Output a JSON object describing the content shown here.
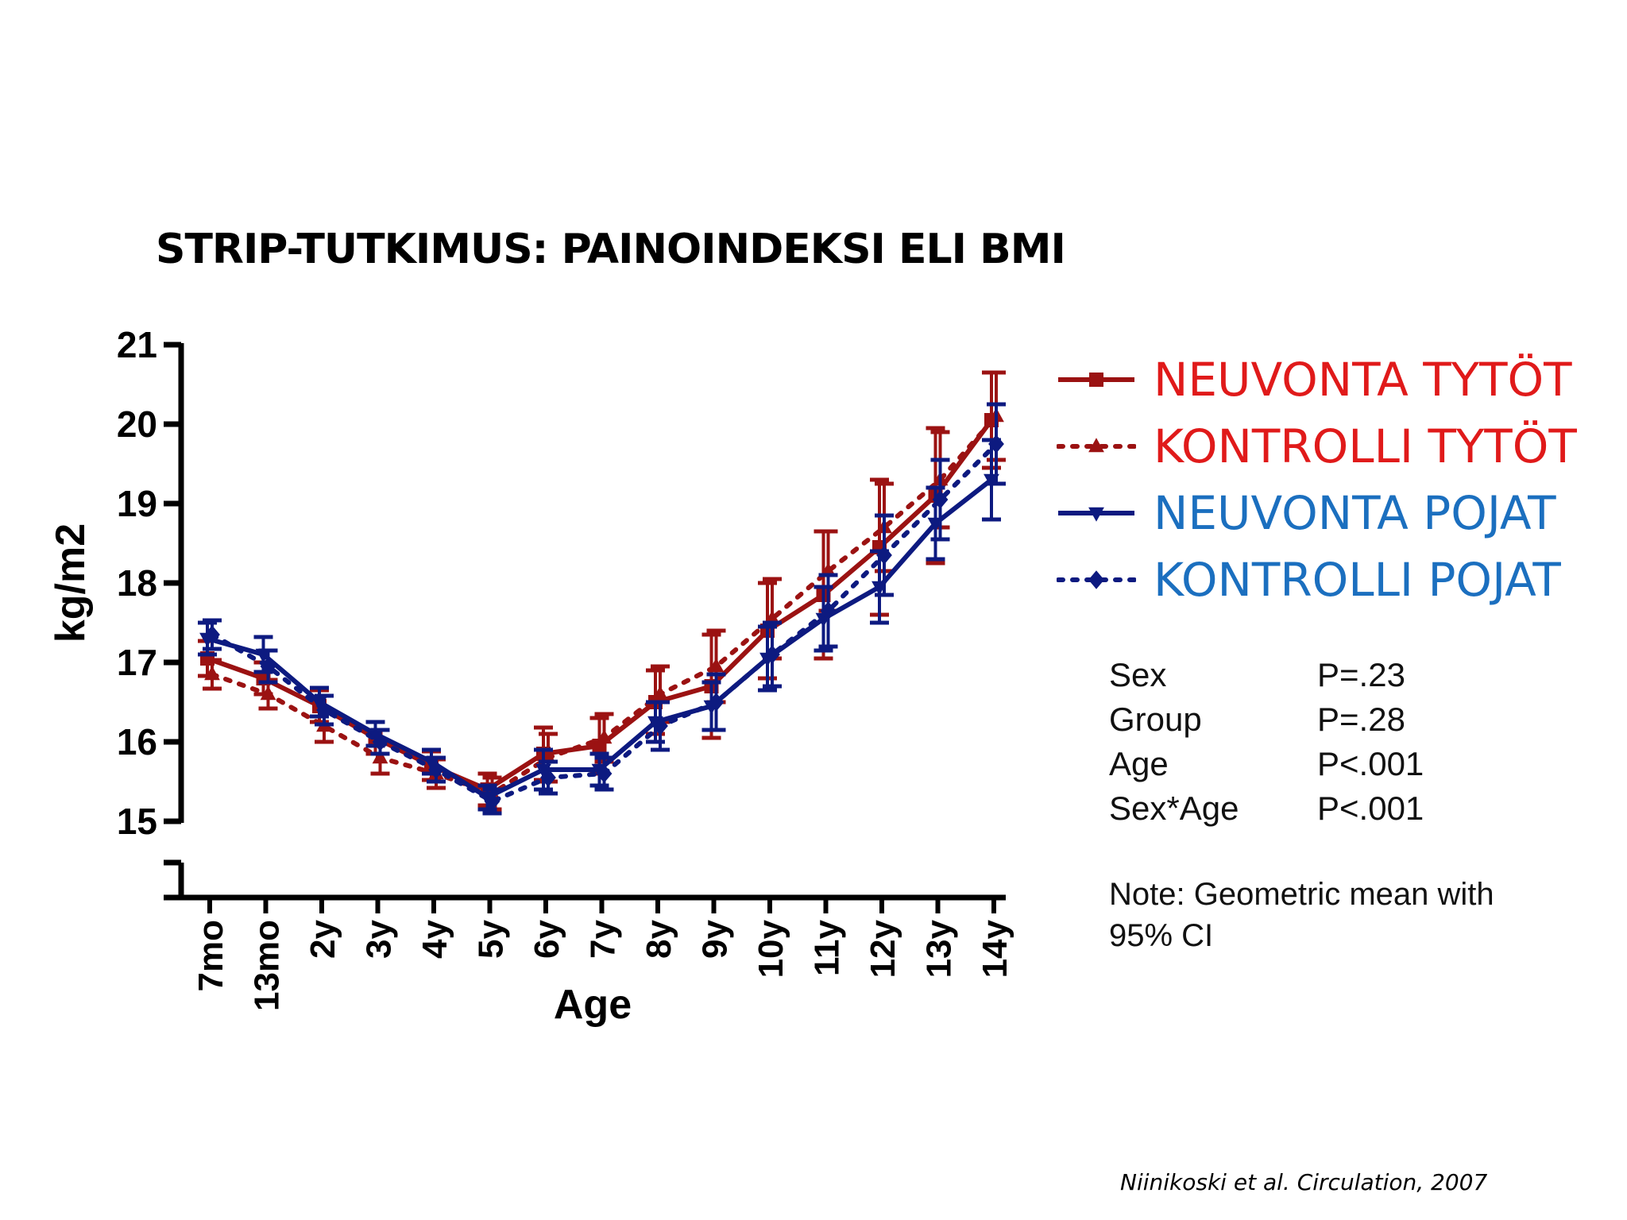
{
  "title": "STRIP-TUTKIMUS: PAINOINDEKSI ELI BMI",
  "chart_data": {
    "type": "line",
    "ylabel": "kg/m2",
    "xlabel": "Age",
    "categories": [
      "7mo",
      "13mo",
      "2y",
      "3y",
      "4y",
      "5y",
      "6y",
      "7y",
      "8y",
      "9y",
      "10y",
      "11y",
      "12y",
      "13y",
      "14y"
    ],
    "ylim": [
      15,
      21
    ],
    "yticks": [
      "15",
      "16",
      "17",
      "18",
      "19",
      "20",
      "21"
    ],
    "legend_position": "right",
    "series": [
      {
        "name": "NEUVONTA TYTÖT",
        "color": "#9b1212",
        "dash": "solid",
        "marker": "square",
        "values": [
          17.05,
          16.8,
          16.45,
          16.05,
          15.7,
          15.4,
          15.85,
          15.95,
          16.5,
          16.7,
          17.4,
          17.85,
          18.45,
          19.1,
          20.05
        ],
        "ci": [
          0.22,
          0.2,
          0.2,
          0.2,
          0.18,
          0.2,
          0.33,
          0.35,
          0.4,
          0.65,
          0.6,
          0.8,
          0.85,
          0.85,
          0.6
        ]
      },
      {
        "name": "KONTROLLI TYTÖT",
        "color": "#9b1212",
        "dash": "dotted",
        "marker": "triangle-up",
        "values": [
          16.85,
          16.6,
          16.2,
          15.8,
          15.6,
          15.35,
          15.8,
          16.05,
          16.6,
          16.95,
          17.55,
          18.15,
          18.7,
          19.3,
          20.1
        ],
        "ci": [
          0.18,
          0.18,
          0.2,
          0.2,
          0.18,
          0.2,
          0.3,
          0.3,
          0.35,
          0.45,
          0.5,
          0.5,
          0.55,
          0.6,
          0.55
        ]
      },
      {
        "name": "NEUVONTA POJAT",
        "color": "#0d1a80",
        "dash": "solid",
        "marker": "triangle-down",
        "values": [
          17.3,
          17.1,
          16.5,
          16.1,
          15.75,
          15.3,
          15.65,
          15.65,
          16.25,
          16.45,
          17.05,
          17.55,
          17.95,
          18.75,
          19.3
        ],
        "ci": [
          0.2,
          0.22,
          0.18,
          0.15,
          0.15,
          0.15,
          0.25,
          0.2,
          0.25,
          0.3,
          0.4,
          0.4,
          0.45,
          0.45,
          0.5
        ]
      },
      {
        "name": "KONTROLLI POJAT",
        "color": "#0d1a80",
        "dash": "dotted",
        "marker": "diamond",
        "values": [
          17.35,
          16.95,
          16.4,
          16.0,
          15.65,
          15.25,
          15.55,
          15.6,
          16.2,
          16.5,
          17.1,
          17.65,
          18.35,
          19.05,
          19.75
        ],
        "ci": [
          0.18,
          0.2,
          0.18,
          0.15,
          0.15,
          0.15,
          0.2,
          0.2,
          0.3,
          0.35,
          0.4,
          0.45,
          0.5,
          0.5,
          0.5
        ]
      }
    ]
  },
  "legend": [
    {
      "label": "NEUVONTA TYTÖT",
      "text_color": "#e01a1a"
    },
    {
      "label": "KONTROLLI TYTÖT",
      "text_color": "#e01a1a"
    },
    {
      "label": "NEUVONTA POJAT",
      "text_color": "#1b6fbf"
    },
    {
      "label": "KONTROLLI POJAT",
      "text_color": "#1b6fbf"
    }
  ],
  "stats": [
    {
      "name": "Sex",
      "value": "P=.23"
    },
    {
      "name": "Group",
      "value": "P=.28"
    },
    {
      "name": "Age",
      "value": "P<.001"
    },
    {
      "name": "Sex*Age",
      "value": "P<.001"
    }
  ],
  "note": "Note: Geometric mean with 95% CI",
  "citation": "Niinikoski et al. Circulation, 2007"
}
